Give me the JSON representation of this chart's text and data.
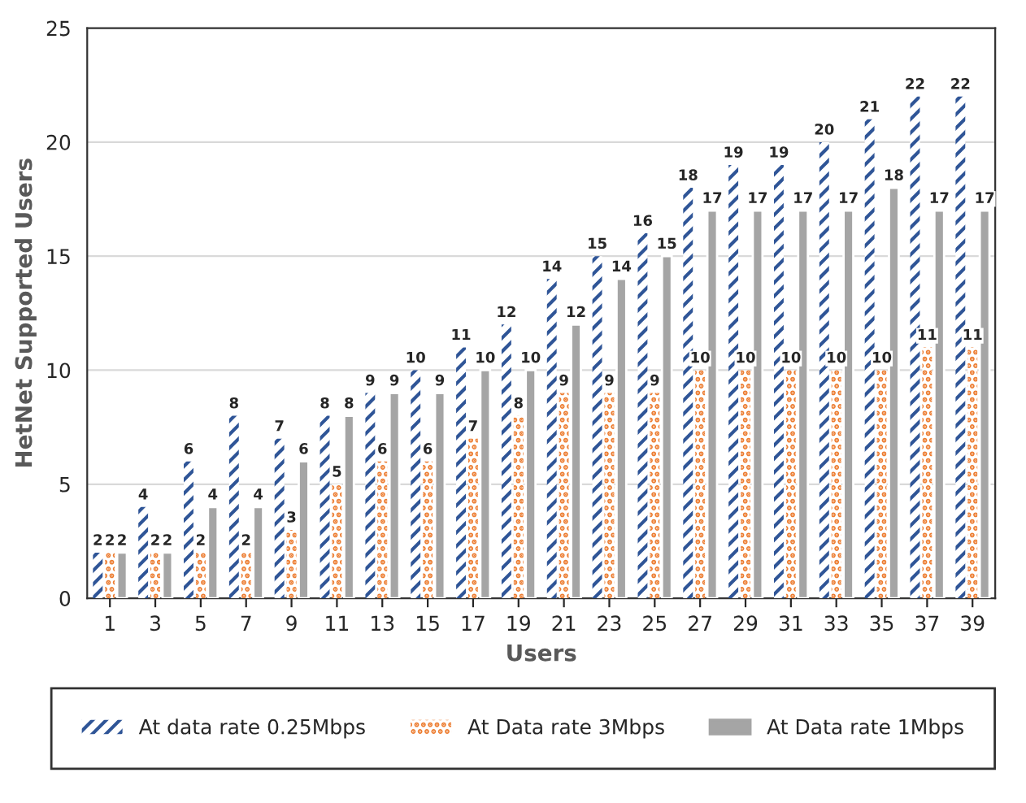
{
  "chart_data": {
    "type": "bar",
    "xlabel": "Users",
    "ylabel": "HetNet Supported Users",
    "categories": [
      "1",
      "3",
      "5",
      "7",
      "9",
      "11",
      "13",
      "15",
      "17",
      "19",
      "21",
      "23",
      "25",
      "27",
      "29",
      "31",
      "33",
      "35",
      "37",
      "39"
    ],
    "series": [
      {
        "name": "At data rate 0.25Mbps",
        "color": "#2f5597",
        "values": [
          2,
          4,
          6,
          8,
          7,
          8,
          9,
          10,
          11,
          12,
          14,
          15,
          16,
          18,
          19,
          19,
          20,
          21,
          22,
          22
        ]
      },
      {
        "name": "At Data rate 3Mbps",
        "color": "#ed7d31",
        "values": [
          2,
          2,
          2,
          2,
          3,
          5,
          6,
          6,
          7,
          8,
          9,
          9,
          9,
          10,
          10,
          10,
          10,
          10,
          11,
          11
        ]
      },
      {
        "name": "At Data rate 1Mbps",
        "color": "#a5a5a5",
        "values": [
          2,
          2,
          4,
          4,
          6,
          8,
          9,
          9,
          10,
          10,
          12,
          14,
          15,
          17,
          17,
          17,
          17,
          18,
          17,
          17
        ]
      }
    ],
    "ylim": [
      0,
      25
    ],
    "yticks": [
      0,
      5,
      10,
      15,
      20,
      25
    ],
    "grid": "y",
    "legend": "bottom",
    "data_labels": true
  }
}
